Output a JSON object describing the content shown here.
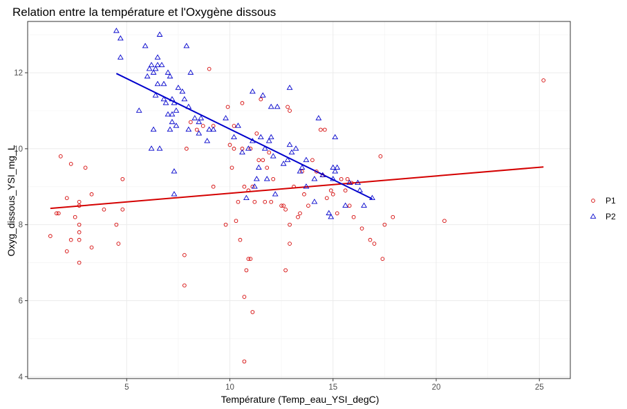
{
  "chart_data": {
    "type": "scatter",
    "title": "Relation entre la température et l'Oxygène dissous",
    "xlabel": "Température (Temp_eau_YSI_degC)",
    "ylabel": "Oxyg_dissous_YSI_mg_L",
    "xlim": [
      0.2,
      26.5
    ],
    "ylim": [
      3.95,
      13.35
    ],
    "xticks": [
      5,
      10,
      15,
      20,
      25
    ],
    "yticks": [
      4,
      6,
      8,
      10,
      12
    ],
    "grid": true,
    "legend_position": "right",
    "series": [
      {
        "name": "P1",
        "marker": "circle",
        "color": "#d40000",
        "points": [
          [
            1.3,
            7.7
          ],
          [
            1.6,
            8.3
          ],
          [
            1.7,
            8.3
          ],
          [
            1.8,
            9.8
          ],
          [
            2.1,
            7.3
          ],
          [
            2.1,
            8.7
          ],
          [
            2.3,
            7.6
          ],
          [
            2.3,
            9.6
          ],
          [
            2.5,
            8.2
          ],
          [
            2.7,
            7.0
          ],
          [
            2.7,
            7.6
          ],
          [
            2.7,
            7.8
          ],
          [
            2.7,
            8.0
          ],
          [
            2.7,
            8.5
          ],
          [
            2.7,
            8.6
          ],
          [
            3.0,
            9.5
          ],
          [
            3.3,
            7.4
          ],
          [
            3.3,
            8.8
          ],
          [
            3.9,
            8.4
          ],
          [
            4.5,
            8.0
          ],
          [
            4.6,
            7.5
          ],
          [
            4.8,
            8.4
          ],
          [
            4.8,
            9.2
          ],
          [
            7.8,
            7.2
          ],
          [
            7.8,
            6.4
          ],
          [
            7.9,
            10.0
          ],
          [
            8.1,
            10.7
          ],
          [
            8.4,
            10.5
          ],
          [
            8.7,
            10.6
          ],
          [
            9.0,
            12.1
          ],
          [
            9.2,
            9.0
          ],
          [
            9.2,
            10.6
          ],
          [
            9.8,
            8.0
          ],
          [
            9.9,
            11.1
          ],
          [
            10.0,
            10.1
          ],
          [
            10.1,
            9.5
          ],
          [
            10.2,
            10.6
          ],
          [
            10.2,
            10.0
          ],
          [
            10.3,
            8.1
          ],
          [
            10.4,
            8.6
          ],
          [
            10.5,
            7.6
          ],
          [
            10.6,
            11.2
          ],
          [
            10.6,
            10.0
          ],
          [
            10.7,
            9.0
          ],
          [
            10.7,
            4.4
          ],
          [
            10.7,
            6.1
          ],
          [
            10.8,
            6.8
          ],
          [
            10.9,
            7.1
          ],
          [
            10.9,
            8.9
          ],
          [
            11.0,
            7.1
          ],
          [
            11.0,
            10.0
          ],
          [
            11.1,
            5.7
          ],
          [
            11.1,
            9.0
          ],
          [
            11.2,
            8.6
          ],
          [
            11.3,
            10.4
          ],
          [
            11.4,
            9.7
          ],
          [
            11.5,
            11.3
          ],
          [
            11.6,
            9.7
          ],
          [
            11.7,
            8.6
          ],
          [
            11.8,
            9.5
          ],
          [
            11.9,
            9.9
          ],
          [
            12.0,
            8.6
          ],
          [
            12.1,
            9.2
          ],
          [
            12.5,
            8.5
          ],
          [
            12.6,
            8.5
          ],
          [
            12.7,
            6.8
          ],
          [
            12.7,
            8.4
          ],
          [
            12.8,
            11.1
          ],
          [
            12.9,
            11.0
          ],
          [
            12.9,
            7.5
          ],
          [
            12.9,
            8.0
          ],
          [
            13.1,
            9.0
          ],
          [
            13.3,
            8.2
          ],
          [
            13.4,
            8.3
          ],
          [
            13.5,
            9.4
          ],
          [
            13.6,
            8.8
          ],
          [
            13.8,
            8.5
          ],
          [
            14.0,
            9.7
          ],
          [
            14.2,
            9.4
          ],
          [
            14.4,
            10.5
          ],
          [
            14.5,
            9.3
          ],
          [
            14.6,
            10.5
          ],
          [
            14.7,
            8.7
          ],
          [
            14.9,
            8.9
          ],
          [
            15.0,
            8.8
          ],
          [
            15.2,
            8.3
          ],
          [
            15.4,
            9.2
          ],
          [
            15.6,
            8.9
          ],
          [
            15.7,
            9.2
          ],
          [
            15.8,
            8.5
          ],
          [
            15.9,
            9.1
          ],
          [
            16.0,
            8.2
          ],
          [
            16.4,
            7.9
          ],
          [
            16.8,
            7.6
          ],
          [
            17.0,
            7.5
          ],
          [
            17.3,
            9.8
          ],
          [
            17.4,
            7.1
          ],
          [
            17.5,
            8.0
          ],
          [
            17.9,
            8.2
          ],
          [
            20.4,
            8.1
          ],
          [
            25.2,
            11.8
          ]
        ],
        "trend": [
          [
            1.3,
            8.43
          ],
          [
            25.2,
            9.52
          ]
        ]
      },
      {
        "name": "P2",
        "marker": "triangle",
        "color": "#0000cc",
        "points": [
          [
            4.5,
            13.1
          ],
          [
            4.7,
            12.9
          ],
          [
            4.7,
            12.4
          ],
          [
            5.6,
            11.0
          ],
          [
            5.9,
            12.7
          ],
          [
            6.0,
            11.9
          ],
          [
            6.1,
            12.1
          ],
          [
            6.2,
            12.2
          ],
          [
            6.2,
            10.0
          ],
          [
            6.3,
            10.5
          ],
          [
            6.3,
            12.0
          ],
          [
            6.4,
            11.4
          ],
          [
            6.4,
            12.1
          ],
          [
            6.5,
            11.7
          ],
          [
            6.5,
            12.2
          ],
          [
            6.5,
            12.4
          ],
          [
            6.6,
            13.0
          ],
          [
            6.6,
            10.0
          ],
          [
            6.7,
            12.2
          ],
          [
            6.8,
            11.3
          ],
          [
            6.8,
            11.7
          ],
          [
            6.9,
            11.2
          ],
          [
            7.0,
            10.9
          ],
          [
            7.0,
            12.0
          ],
          [
            7.1,
            10.5
          ],
          [
            7.1,
            11.9
          ],
          [
            7.2,
            10.7
          ],
          [
            7.2,
            10.9
          ],
          [
            7.2,
            11.3
          ],
          [
            7.3,
            8.8
          ],
          [
            7.3,
            9.4
          ],
          [
            7.3,
            11.2
          ],
          [
            7.4,
            11.0
          ],
          [
            7.4,
            10.6
          ],
          [
            7.5,
            11.6
          ],
          [
            7.7,
            11.5
          ],
          [
            7.8,
            11.3
          ],
          [
            7.9,
            12.7
          ],
          [
            8.0,
            10.5
          ],
          [
            8.0,
            11.1
          ],
          [
            8.1,
            12.0
          ],
          [
            8.3,
            10.8
          ],
          [
            8.5,
            10.7
          ],
          [
            8.5,
            10.4
          ],
          [
            8.6,
            10.8
          ],
          [
            8.9,
            10.2
          ],
          [
            9.0,
            10.5
          ],
          [
            9.2,
            10.5
          ],
          [
            9.8,
            10.8
          ],
          [
            10.2,
            10.3
          ],
          [
            10.4,
            10.6
          ],
          [
            10.6,
            9.9
          ],
          [
            10.8,
            8.7
          ],
          [
            10.9,
            10.0
          ],
          [
            11.1,
            10.2
          ],
          [
            11.1,
            11.5
          ],
          [
            11.2,
            9.0
          ],
          [
            11.3,
            9.2
          ],
          [
            11.4,
            9.5
          ],
          [
            11.5,
            10.3
          ],
          [
            11.6,
            11.4
          ],
          [
            11.7,
            10.0
          ],
          [
            11.8,
            9.2
          ],
          [
            11.9,
            10.2
          ],
          [
            12.0,
            10.3
          ],
          [
            12.0,
            11.1
          ],
          [
            12.1,
            9.8
          ],
          [
            12.2,
            8.8
          ],
          [
            12.3,
            11.1
          ],
          [
            12.6,
            9.6
          ],
          [
            12.8,
            9.7
          ],
          [
            12.9,
            10.1
          ],
          [
            12.9,
            11.6
          ],
          [
            13.0,
            9.9
          ],
          [
            13.2,
            10.0
          ],
          [
            13.4,
            9.4
          ],
          [
            13.5,
            9.5
          ],
          [
            13.7,
            9.7
          ],
          [
            13.7,
            9.0
          ],
          [
            14.1,
            8.6
          ],
          [
            14.1,
            9.2
          ],
          [
            14.3,
            10.8
          ],
          [
            14.5,
            9.3
          ],
          [
            14.8,
            8.3
          ],
          [
            14.9,
            8.2
          ],
          [
            15.0,
            9.5
          ],
          [
            15.0,
            9.2
          ],
          [
            15.1,
            9.4
          ],
          [
            15.1,
            10.3
          ],
          [
            15.2,
            9.5
          ],
          [
            15.6,
            8.5
          ],
          [
            15.8,
            9.1
          ],
          [
            16.2,
            9.1
          ],
          [
            16.3,
            8.9
          ],
          [
            16.5,
            8.5
          ],
          [
            16.9,
            8.7
          ]
        ],
        "trend": [
          [
            4.5,
            11.98
          ],
          [
            16.9,
            8.68
          ]
        ]
      }
    ]
  }
}
